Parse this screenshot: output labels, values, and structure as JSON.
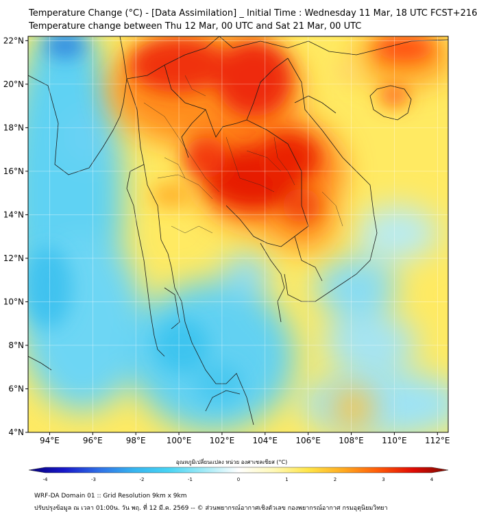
{
  "title_line1": "Temperature Change (°C) - [Data Assimilation] _ Initial Time : Wednesday 11 Mar, 18 UTC FCST+216",
  "title_line2": "Temperature change between Thu 12 Mar, 00 UTC and Sat 21 Mar, 00 UTC",
  "map": {
    "lon_range": [
      93,
      112.5
    ],
    "lat_range": [
      4,
      22.2
    ],
    "lon_ticks": [
      94,
      96,
      98,
      100,
      102,
      104,
      106,
      108,
      110,
      112
    ],
    "lat_ticks": [
      4,
      6,
      8,
      10,
      12,
      14,
      16,
      18,
      20,
      22
    ],
    "lon_tick_labels": [
      "94°E",
      "96°E",
      "98°E",
      "100°E",
      "102°E",
      "104°E",
      "106°E",
      "108°E",
      "110°E",
      "112°E"
    ],
    "lat_tick_labels": [
      "4°N",
      "6°N",
      "8°N",
      "10°N",
      "12°N",
      "14°N",
      "16°N",
      "18°N",
      "20°N",
      "22°N"
    ],
    "border_color": "#1a1a1a"
  },
  "colorbar": {
    "title": "อุณหภูมิเปลี่ยนแปลง หน่วย องศาเซลเซียส (°C)",
    "range": [
      -4,
      4
    ],
    "ticks": [
      -4,
      -3,
      -2,
      -1,
      0,
      1,
      2,
      3,
      4
    ],
    "tick_labels": [
      "-4",
      "-3",
      "-2",
      "-1",
      "0",
      "1",
      "2",
      "3",
      "4"
    ],
    "colors": [
      "#06007a",
      "#1717c9",
      "#2f6fe6",
      "#36b4ef",
      "#48d4f4",
      "#9feaf7",
      "#ffffff",
      "#fff9b8",
      "#ffe547",
      "#ffaa1f",
      "#ff5a08",
      "#e00a03",
      "#7a0a00"
    ]
  },
  "footer_line1": "WRF-DA Domain 01 :: Grid Resolution 9km x 9km",
  "footer_line2": "ปรับปรุงข้อมูล ณ เวลา 01:00น. วัน พฤ. ที่ 12 มี.ค. 2569 -- © ส่วนพยากรณ์อากาศเชิงตัวเลข กองพยากรณ์อากาศ กรมอุตุนิยมวิทยา"
}
